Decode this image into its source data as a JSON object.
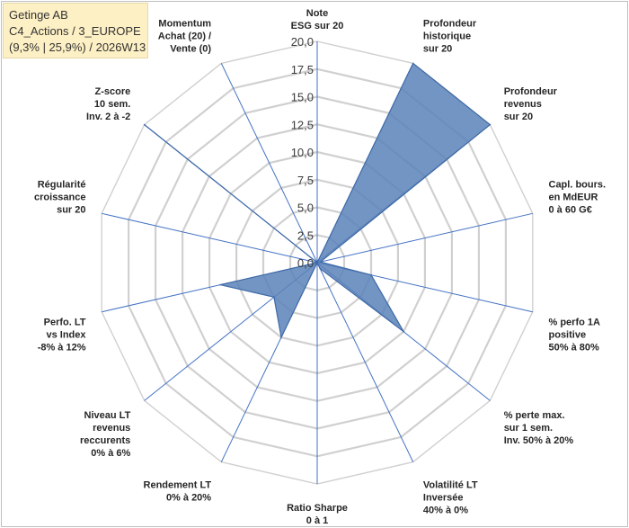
{
  "header": {
    "lines": [
      "Getinge AB",
      "C4_Actions / 3_EUROPE",
      "(9,3% | 25,9%) / 2026W13"
    ]
  },
  "chart_data": {
    "type": "radar",
    "title": "Getinge AB",
    "subtitle": "C4_Actions / 3_EUROPE (9,3% | 25,9%) / 2026W13",
    "range": [
      0,
      20
    ],
    "tick_labels": [
      "0,0",
      "2,5",
      "5,0",
      "7,5",
      "10,0",
      "12,5",
      "15,0",
      "17,5",
      "20,0"
    ],
    "categories": [
      [
        "Note",
        "ESG sur 20"
      ],
      [
        "Profondeur",
        "historique",
        "sur 20"
      ],
      [
        "Profondeur",
        "revenus",
        "sur 20"
      ],
      [
        "Capl. bours.",
        "en MdEUR",
        "0 à 60 G€"
      ],
      [
        "% perfo 1A",
        "positive",
        "50% à 80%"
      ],
      [
        "% perte max.",
        "sur 1 sem.",
        "Inv. 50% à 20%"
      ],
      [
        "Volatilité LT",
        "Inversée",
        "40% à 0%"
      ],
      [
        "Ratio Sharpe",
        "0 à 1"
      ],
      [
        "Rendement LT",
        "0% à 20%"
      ],
      [
        "Niveau LT",
        "revenus",
        "reccurents",
        "0% à 6%"
      ],
      [
        "Perfo. LT",
        "vs Index",
        "-8% à 12%"
      ],
      [
        "Régularité",
        "croissance",
        "sur 20"
      ],
      [
        "Z-score",
        "10 sem.",
        "Inv. 2 à -2"
      ],
      [
        "Momentum",
        "Achat (20) /",
        "Vente (0)"
      ]
    ],
    "series": [
      {
        "values": [
          0,
          20,
          20,
          0.3,
          5,
          10,
          0.6,
          0,
          7.5,
          5,
          9,
          0,
          20,
          0
        ],
        "color": "#5b82b9"
      }
    ],
    "grid": true
  }
}
